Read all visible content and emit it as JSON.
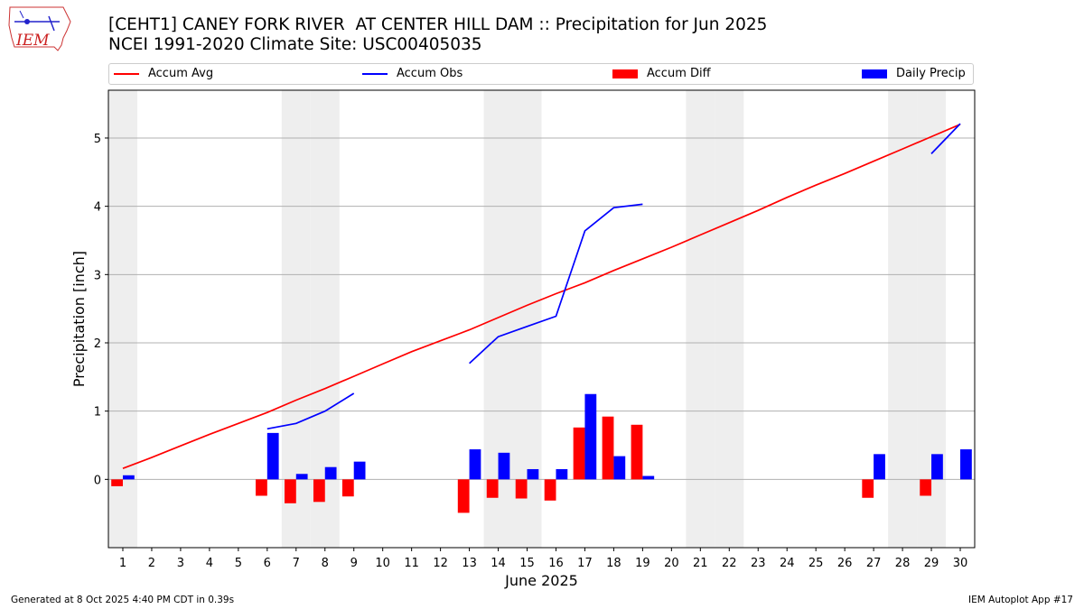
{
  "logo": {
    "text": "IEM"
  },
  "title": {
    "line1": "[CEHT1] CANEY FORK RIVER  AT CENTER HILL DAM :: Precipitation for Jun 2025",
    "line2": "NCEI 1991-2020 Climate Site: USC00405035"
  },
  "legend": {
    "accum_avg": "Accum Avg",
    "accum_obs": "Accum Obs",
    "accum_diff": "Accum Diff",
    "daily_precip": "Daily Precip"
  },
  "colors": {
    "avg": "#ff0000",
    "obs": "#0000ff",
    "diff": "#ff0000",
    "daily": "#0000ff",
    "weekend": "#eeeeee",
    "grid": "#b0b0b0"
  },
  "footer": {
    "left": "Generated at 8 Oct 2025 4:40 PM CDT in 0.39s",
    "right": "IEM Autoplot App #17"
  },
  "chart_data": {
    "type": "bar",
    "title": "[CEHT1] CANEY FORK RIVER  AT CENTER HILL DAM :: Precipitation for Jun 2025",
    "xlabel": "June 2025",
    "ylabel": "Precipitation [inch]",
    "xlim": [
      0.5,
      30.5
    ],
    "ylim": [
      -1.0,
      5.7
    ],
    "x_ticks": [
      1,
      2,
      3,
      4,
      5,
      6,
      7,
      8,
      9,
      10,
      11,
      12,
      13,
      14,
      15,
      16,
      17,
      18,
      19,
      20,
      21,
      22,
      23,
      24,
      25,
      26,
      27,
      28,
      29,
      30
    ],
    "y_ticks": [
      0,
      1,
      2,
      3,
      4,
      5
    ],
    "weekend_days": [
      1,
      7,
      8,
      14,
      15,
      21,
      22,
      28,
      29
    ],
    "series": [
      {
        "name": "Accum Avg",
        "type": "line",
        "x": [
          1,
          2,
          3,
          4,
          5,
          6,
          7,
          8,
          9,
          10,
          11,
          12,
          13,
          14,
          15,
          16,
          17,
          18,
          19,
          20,
          21,
          22,
          23,
          24,
          25,
          26,
          27,
          28,
          29,
          30
        ],
        "values": [
          0.16,
          0.32,
          0.49,
          0.66,
          0.82,
          0.98,
          1.16,
          1.33,
          1.51,
          1.69,
          1.87,
          2.03,
          2.19,
          2.37,
          2.55,
          2.72,
          2.88,
          3.06,
          3.23,
          3.4,
          3.58,
          3.76,
          3.94,
          4.13,
          4.31,
          4.48,
          4.66,
          4.84,
          5.02,
          5.2
        ]
      },
      {
        "name": "Accum Obs",
        "type": "line",
        "x": [
          1,
          2,
          3,
          4,
          5,
          6,
          7,
          8,
          9,
          10,
          11,
          12,
          13,
          14,
          15,
          16,
          17,
          18,
          19,
          20,
          21,
          22,
          23,
          24,
          25,
          26,
          27,
          28,
          29,
          30
        ],
        "values": [
          null,
          null,
          null,
          null,
          null,
          0.74,
          0.82,
          1.0,
          1.26,
          null,
          null,
          null,
          1.7,
          2.09,
          2.24,
          2.39,
          3.64,
          3.98,
          4.03,
          null,
          null,
          null,
          null,
          null,
          null,
          null,
          null,
          null,
          4.77,
          5.21
        ]
      },
      {
        "name": "Accum Diff",
        "type": "bar",
        "x": [
          1,
          2,
          3,
          4,
          5,
          6,
          7,
          8,
          9,
          10,
          11,
          12,
          13,
          14,
          15,
          16,
          17,
          18,
          19,
          20,
          21,
          22,
          23,
          24,
          25,
          26,
          27,
          28,
          29,
          30
        ],
        "values": [
          -0.1,
          0,
          0,
          0,
          0,
          -0.24,
          -0.35,
          -0.33,
          -0.25,
          0,
          0,
          0,
          -0.49,
          -0.27,
          -0.28,
          -0.31,
          0.76,
          0.92,
          0.8,
          0,
          0,
          0,
          0,
          0,
          0,
          0,
          -0.27,
          0,
          -0.24,
          0
        ]
      },
      {
        "name": "Daily Precip",
        "type": "bar",
        "x": [
          1,
          2,
          3,
          4,
          5,
          6,
          7,
          8,
          9,
          10,
          11,
          12,
          13,
          14,
          15,
          16,
          17,
          18,
          19,
          20,
          21,
          22,
          23,
          24,
          25,
          26,
          27,
          28,
          29,
          30
        ],
        "values": [
          0.06,
          0,
          0,
          0,
          0,
          0.68,
          0.08,
          0.18,
          0.26,
          0,
          0,
          0,
          0.44,
          0.39,
          0.15,
          0.15,
          1.25,
          0.34,
          0.05,
          0,
          0,
          0,
          0,
          0,
          0,
          0,
          0.37,
          0,
          0.37,
          0.44
        ]
      }
    ]
  }
}
